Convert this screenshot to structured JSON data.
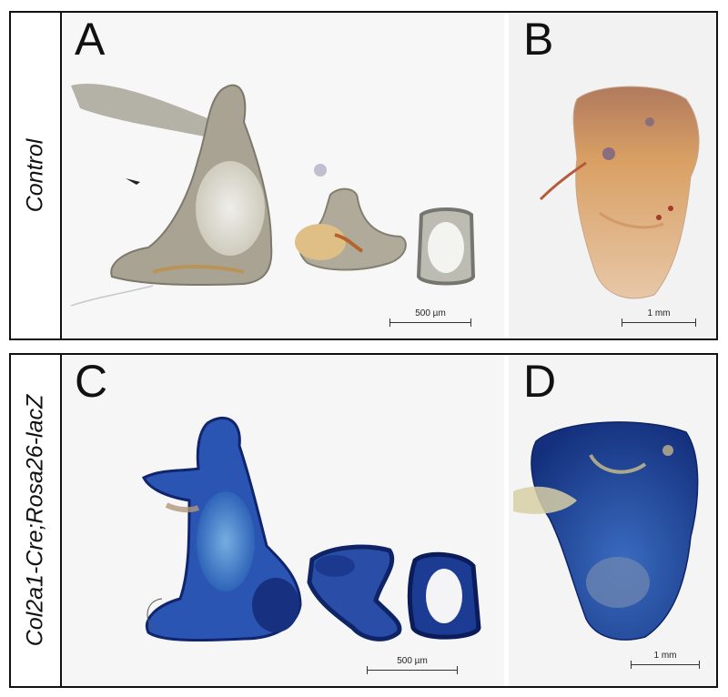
{
  "figure": {
    "rows": [
      {
        "label": "Control",
        "panels": [
          {
            "letter": "A",
            "scale": "500 µm"
          },
          {
            "letter": "B",
            "scale": "1 mm"
          }
        ]
      },
      {
        "label": "Col2a1-Cre;Rosa26-lacZ",
        "panels": [
          {
            "letter": "C",
            "scale": "500 µm"
          },
          {
            "letter": "D",
            "scale": "1 mm"
          }
        ]
      }
    ]
  },
  "colors": {
    "control_bone": "#b9b09a",
    "control_orange": "#d9a75b",
    "xgal_blue": "#1f47a8",
    "xgal_dark": "#10256e",
    "panel_bg": "#f6f6f7"
  }
}
